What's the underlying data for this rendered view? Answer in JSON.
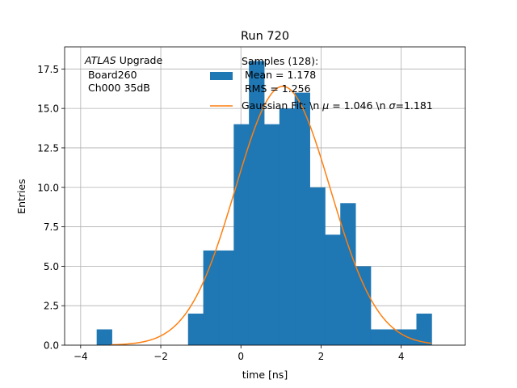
{
  "chart_data": {
    "type": "bar",
    "title": "Run 720",
    "xlabel": "time [ns]",
    "ylabel": "Entries",
    "xlim": [
      -4.4,
      5.6
    ],
    "ylim": [
      0,
      18.9
    ],
    "grid": true,
    "xticks": [
      -4,
      -2,
      0,
      2,
      4
    ],
    "xtick_labels": [
      "−4",
      "−2",
      "0",
      "2",
      "4"
    ],
    "yticks": [
      0.0,
      2.5,
      5.0,
      7.5,
      10.0,
      12.5,
      15.0,
      17.5
    ],
    "ytick_labels": [
      "0.0",
      "2.5",
      "5.0",
      "7.5",
      "10.0",
      "12.5",
      "15.0",
      "17.5"
    ],
    "histogram": {
      "name": "Samples (128):",
      "color": "#1f77b4",
      "bin_edges": [
        -3.6,
        -3.22,
        -2.84,
        -2.46,
        -2.08,
        -1.7,
        -1.32,
        -0.94,
        -0.56,
        -0.18,
        0.2,
        0.58,
        0.96,
        1.34,
        1.72,
        2.1,
        2.48,
        2.86,
        3.24,
        3.62,
        4.0,
        4.38,
        4.76
      ],
      "counts": [
        1,
        0,
        0,
        0,
        0,
        0,
        2,
        6,
        6,
        14,
        18,
        14,
        15,
        16,
        10,
        7,
        9,
        5,
        1,
        1,
        1,
        2
      ]
    },
    "fit": {
      "name": "Gaussian Fit: \\n μ = 1.046 \\n σ=1.181",
      "color": "#ff7f0e",
      "mu": 1.046,
      "sigma": 1.181,
      "peak": 16.4,
      "x_range": [
        -3.25,
        4.75
      ]
    },
    "annotation": {
      "line1_italic": "ATLAS",
      "line1_rest": " Upgrade",
      "line2": " Board260",
      "line3": " Ch000 35dB"
    },
    "legend": {
      "location": "top-right",
      "hist_line1": "Samples (128):",
      "hist_line2": " Mean = 1.178",
      "hist_line3": " RMS = 1.256",
      "fit_label_pre": "Gaussian Fit: \\n ",
      "fit_mu_symbol": "μ",
      "fit_mid": " = 1.046 \\n ",
      "fit_sigma_symbol": "σ",
      "fit_post": "=1.181"
    }
  }
}
